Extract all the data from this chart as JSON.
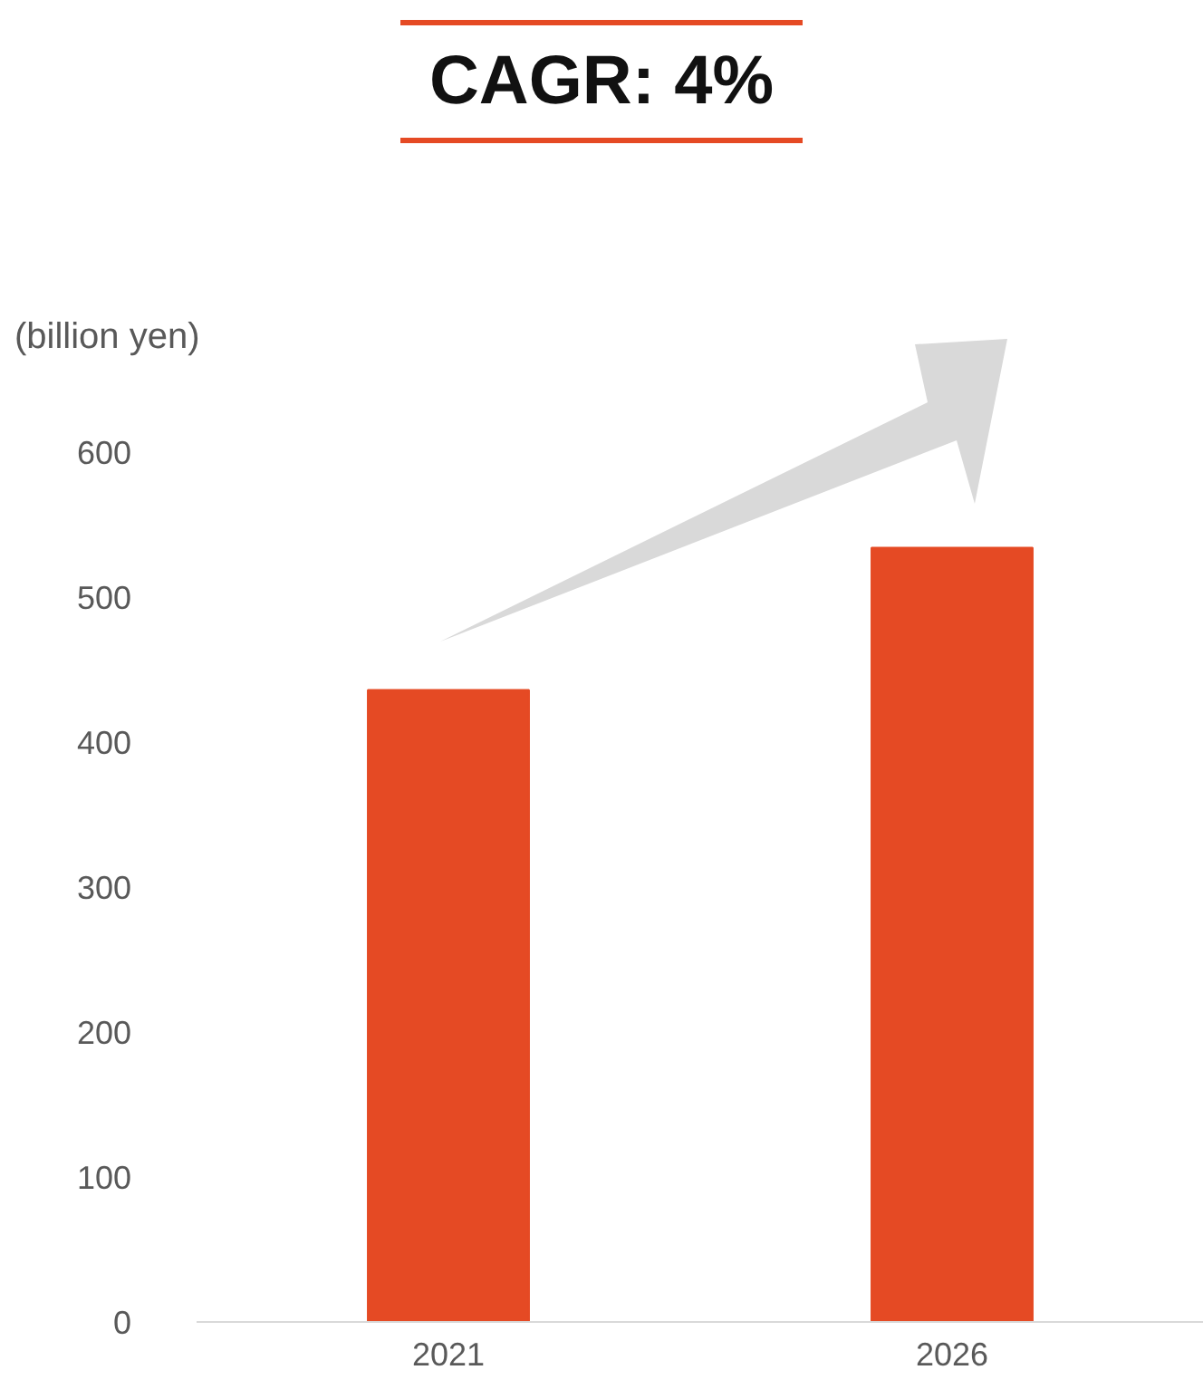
{
  "chart_data": {
    "type": "bar",
    "title": "CAGR: 4%",
    "ylabel": "(billion yen)",
    "categories": [
      "2021",
      "2026"
    ],
    "values": [
      436,
      534
    ],
    "color": "#e54a24",
    "ylim": [
      0,
      600
    ],
    "yticks": [
      0,
      100,
      200,
      300,
      400,
      500,
      600
    ],
    "grid": false
  }
}
